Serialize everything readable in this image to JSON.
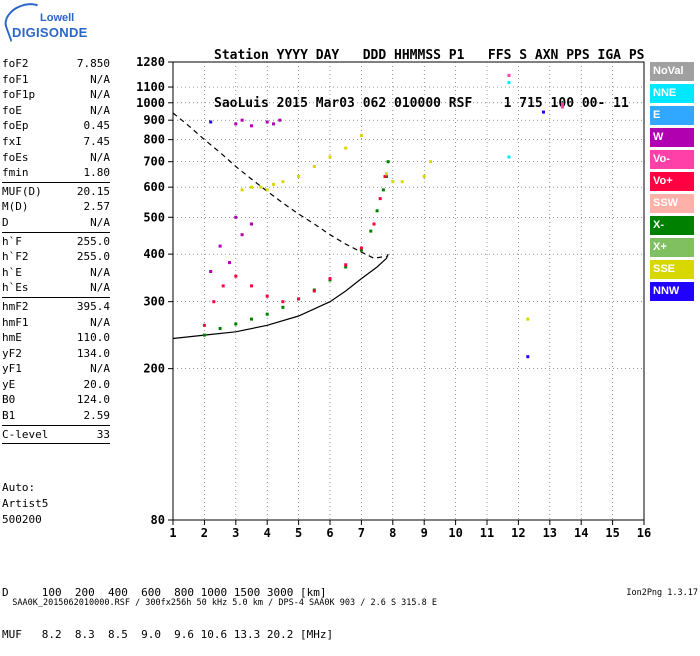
{
  "logo": {
    "line1": "Lowell",
    "line2": "DIGISONDE"
  },
  "header": {
    "line1": "Station YYYY DAY   DDD HHMMSS P1   FFS S AXN PPS IGA PS",
    "line2": "SaoLuis 2015 Mar03 062 010000 RSF    1 715 100 00- 11"
  },
  "params": {
    "group1": [
      {
        "k": "foF2",
        "v": "7.850"
      },
      {
        "k": "foF1",
        "v": "N/A"
      },
      {
        "k": "foF1p",
        "v": "N/A"
      },
      {
        "k": "foE",
        "v": "N/A"
      },
      {
        "k": "foEp",
        "v": "0.45"
      },
      {
        "k": "fxI",
        "v": "7.45"
      },
      {
        "k": "foEs",
        "v": "N/A"
      },
      {
        "k": "fmin",
        "v": "1.80"
      }
    ],
    "group2": [
      {
        "k": "MUF(D)",
        "v": "20.15"
      },
      {
        "k": "M(D)",
        "v": "2.57"
      },
      {
        "k": "D",
        "v": "N/A"
      }
    ],
    "group3": [
      {
        "k": "h`F",
        "v": "255.0"
      },
      {
        "k": "h`F2",
        "v": "255.0"
      },
      {
        "k": "h`E",
        "v": "N/A"
      },
      {
        "k": "h`Es",
        "v": "N/A"
      }
    ],
    "group4": [
      {
        "k": "hmF2",
        "v": "395.4"
      },
      {
        "k": "hmF1",
        "v": "N/A"
      },
      {
        "k": "hmE",
        "v": "110.0"
      },
      {
        "k": "yF2",
        "v": "134.0"
      },
      {
        "k": "yF1",
        "v": "N/A"
      },
      {
        "k": "yE",
        "v": "20.0"
      },
      {
        "k": "B0",
        "v": "124.0"
      },
      {
        "k": "B1",
        "v": "2.59"
      }
    ],
    "group5": [
      {
        "k": "C-level",
        "v": "33"
      }
    ]
  },
  "auto": {
    "line1": "Auto:",
    "line2": "Artist5",
    "line3": "500200"
  },
  "footer": {
    "d_row": "D     100  200  400  600  800 1000 1500 3000 [km]",
    "muf_row": "MUF   8.2  8.3  8.5  9.0  9.6 10.6 13.3 20.2 [MHz]"
  },
  "bottom": {
    "info": "SAA0K_2015062010000.RSF / 300fx256h 50 kHz 5.0 km / DPS-4 SAA0K 903 / 2.6 S 315.8 E",
    "version": "Ion2Png 1.3.17"
  },
  "legend": [
    {
      "label": "NoVal",
      "color": "#a0a0a0"
    },
    {
      "label": "NNE",
      "color": "#00e8ff"
    },
    {
      "label": "E",
      "color": "#30a8ff"
    },
    {
      "label": "W",
      "color": "#b000b0"
    },
    {
      "label": "Vo-",
      "color": "#ff40a8"
    },
    {
      "label": "Vo+",
      "color": "#ff0040"
    },
    {
      "label": "SSW",
      "color": "#ffb0a8"
    },
    {
      "label": "X-",
      "color": "#008000"
    },
    {
      "label": "X+",
      "color": "#80c060"
    },
    {
      "label": "SSE",
      "color": "#d8d800"
    },
    {
      "label": "NNW",
      "color": "#2000ff"
    }
  ],
  "chart_data": {
    "type": "scatter",
    "title": "",
    "xlabel": "",
    "ylabel": "",
    "x_ticks": [
      "1",
      "2",
      "3",
      "4",
      "5",
      "6",
      "7",
      "8",
      "9",
      "10",
      "11",
      "12",
      "13",
      "14",
      "15",
      "16"
    ],
    "y_ticks": [
      "80",
      "200",
      "300",
      "400",
      "500",
      "600",
      "700",
      "800",
      "900",
      "1000",
      "1100",
      "1280"
    ],
    "xlim": [
      1,
      16
    ],
    "ylim": [
      80,
      1280
    ],
    "y_scale": "log",
    "grid": "dotted",
    "legend_position": "right",
    "series": [
      {
        "name": "X-",
        "color": "#008000",
        "points": [
          [
            2.0,
            245
          ],
          [
            2.5,
            255
          ],
          [
            3.0,
            262
          ],
          [
            3.5,
            270
          ],
          [
            4.0,
            278
          ],
          [
            4.5,
            290
          ],
          [
            5.0,
            305
          ],
          [
            5.5,
            322
          ],
          [
            6.0,
            342
          ],
          [
            6.5,
            370
          ],
          [
            7.0,
            410
          ],
          [
            7.3,
            460
          ],
          [
            7.5,
            520
          ],
          [
            7.7,
            590
          ],
          [
            7.8,
            640
          ],
          [
            7.85,
            700
          ]
        ]
      },
      {
        "name": "Vo+",
        "color": "#ff0040",
        "points": [
          [
            2.0,
            260
          ],
          [
            2.3,
            300
          ],
          [
            2.6,
            330
          ],
          [
            3.0,
            350
          ],
          [
            3.5,
            330
          ],
          [
            4.0,
            310
          ],
          [
            4.5,
            300
          ],
          [
            5.0,
            305
          ],
          [
            5.5,
            320
          ],
          [
            6.0,
            345
          ],
          [
            6.5,
            375
          ],
          [
            7.0,
            415
          ],
          [
            7.4,
            480
          ],
          [
            7.6,
            560
          ],
          [
            7.75,
            640
          ]
        ]
      },
      {
        "name": "SSE",
        "color": "#d8d800",
        "points": [
          [
            3.2,
            590
          ],
          [
            3.5,
            600
          ],
          [
            3.8,
            600
          ],
          [
            4.0,
            590
          ],
          [
            4.2,
            610
          ],
          [
            4.5,
            620
          ],
          [
            5.0,
            640
          ],
          [
            5.5,
            680
          ],
          [
            6.0,
            720
          ],
          [
            6.5,
            760
          ],
          [
            7.0,
            820
          ],
          [
            7.8,
            650
          ],
          [
            8.0,
            620
          ],
          [
            8.3,
            620
          ],
          [
            9.0,
            640
          ],
          [
            9.2,
            700
          ],
          [
            12.3,
            270
          ]
        ]
      },
      {
        "name": "W",
        "color": "#b000b0",
        "points": [
          [
            3.0,
            880
          ],
          [
            3.2,
            900
          ],
          [
            3.5,
            870
          ],
          [
            4.0,
            890
          ],
          [
            4.2,
            880
          ],
          [
            4.4,
            900
          ],
          [
            3.0,
            500
          ],
          [
            3.2,
            450
          ],
          [
            3.5,
            480
          ],
          [
            2.5,
            420
          ],
          [
            2.8,
            380
          ],
          [
            2.2,
            360
          ]
        ]
      },
      {
        "name": "NNW",
        "color": "#2000ff",
        "points": [
          [
            2.2,
            890
          ],
          [
            12.3,
            215
          ],
          [
            12.8,
            945
          ]
        ]
      },
      {
        "name": "Vo-",
        "color": "#ff40a8",
        "points": [
          [
            11.7,
            1180
          ],
          [
            13.4,
            990
          ],
          [
            13.4,
            975
          ]
        ]
      },
      {
        "name": "NNE",
        "color": "#00e8ff",
        "points": [
          [
            11.7,
            1130
          ],
          [
            11.7,
            720
          ]
        ]
      }
    ],
    "model_curves": [
      {
        "name": "dashed",
        "style": "dashed",
        "points": [
          [
            1.0,
            940
          ],
          [
            1.5,
            870
          ],
          [
            2.0,
            800
          ],
          [
            2.5,
            740
          ],
          [
            3.0,
            680
          ],
          [
            3.5,
            630
          ],
          [
            4.0,
            585
          ],
          [
            4.5,
            545
          ],
          [
            5.0,
            510
          ],
          [
            5.5,
            480
          ],
          [
            6.0,
            450
          ],
          [
            6.5,
            425
          ],
          [
            7.0,
            405
          ],
          [
            7.4,
            390
          ],
          [
            7.8,
            395
          ]
        ]
      },
      {
        "name": "solid",
        "style": "solid",
        "points": [
          [
            1.0,
            240
          ],
          [
            2.0,
            245
          ],
          [
            3.0,
            250
          ],
          [
            4.0,
            260
          ],
          [
            5.0,
            275
          ],
          [
            6.0,
            300
          ],
          [
            6.5,
            320
          ],
          [
            7.0,
            345
          ],
          [
            7.5,
            370
          ],
          [
            7.8,
            390
          ],
          [
            7.85,
            400
          ]
        ]
      }
    ]
  }
}
